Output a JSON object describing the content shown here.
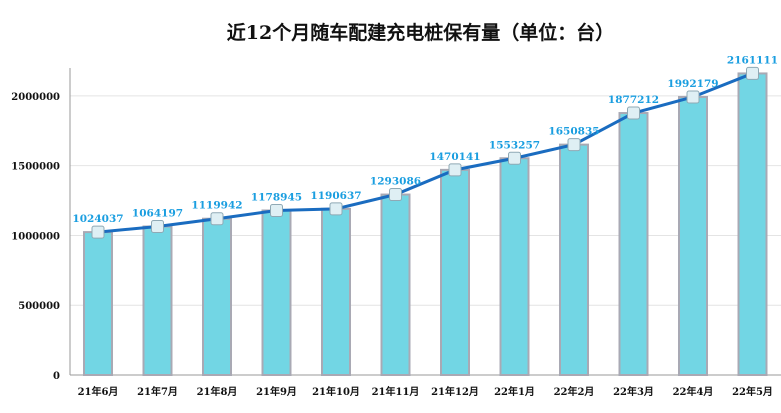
{
  "chart_data": {
    "type": "bar+line",
    "title": "近12个月随车配建充电桩保有量（单位：台）",
    "categories": [
      "21年6月",
      "21年7月",
      "21年8月",
      "21年9月",
      "21年10月",
      "21年11月",
      "21年12月",
      "22年1月",
      "22年2月",
      "22年3月",
      "22年4月",
      "22年5月"
    ],
    "values": [
      1024037,
      1064197,
      1119942,
      1178945,
      1190637,
      1293086,
      1470141,
      1553257,
      1650835,
      1877212,
      1992179,
      2161111
    ],
    "ylim": [
      0,
      2200000
    ],
    "yticks": [
      0,
      500000,
      1000000,
      1500000,
      2000000
    ],
    "grid": true,
    "colors": {
      "bar": "#72d6e4",
      "bar_border": "#a9a9b4",
      "line": "#1a6cc0",
      "label": "#1a9ee0"
    }
  }
}
